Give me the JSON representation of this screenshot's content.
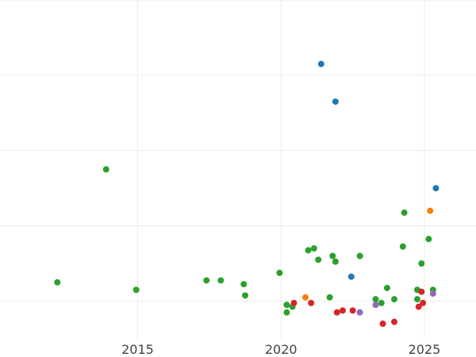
{
  "chart_data": {
    "type": "scatter",
    "title": "",
    "xlabel": "",
    "ylabel": "",
    "xlim": [
      2010.2,
      2026.8
    ],
    "ylim": [
      0,
      9
    ],
    "xticks": [
      2015,
      2020,
      2025
    ],
    "xtick_labels": [
      "2015",
      "2020",
      "2025"
    ],
    "yticks": [
      1,
      3,
      5,
      7,
      9
    ],
    "ytick_labels_visible": false,
    "grid": true,
    "legend": "none",
    "series": [
      {
        "color": "#2ca02c",
        "points": [
          {
            "x": 2012.2,
            "y": 1.5
          },
          {
            "x": 2013.9,
            "y": 4.5
          },
          {
            "x": 2014.95,
            "y": 1.3
          },
          {
            "x": 2017.4,
            "y": 1.55
          },
          {
            "x": 2017.9,
            "y": 1.55
          },
          {
            "x": 2018.7,
            "y": 1.45
          },
          {
            "x": 2018.75,
            "y": 1.15
          },
          {
            "x": 2019.95,
            "y": 1.75
          },
          {
            "x": 2020.2,
            "y": 0.9
          },
          {
            "x": 2020.2,
            "y": 0.7
          },
          {
            "x": 2020.4,
            "y": 0.85
          },
          {
            "x": 2020.95,
            "y": 2.35
          },
          {
            "x": 2021.15,
            "y": 2.4
          },
          {
            "x": 2021.3,
            "y": 2.1
          },
          {
            "x": 2021.7,
            "y": 1.1
          },
          {
            "x": 2021.8,
            "y": 2.2
          },
          {
            "x": 2021.9,
            "y": 2.05
          },
          {
            "x": 2022.75,
            "y": 2.2
          },
          {
            "x": 2023.3,
            "y": 1.05
          },
          {
            "x": 2023.5,
            "y": 0.95
          },
          {
            "x": 2023.7,
            "y": 1.35
          },
          {
            "x": 2023.95,
            "y": 1.05
          },
          {
            "x": 2024.25,
            "y": 2.45
          },
          {
            "x": 2024.3,
            "y": 3.35
          },
          {
            "x": 2024.75,
            "y": 1.05
          },
          {
            "x": 2024.75,
            "y": 1.3
          },
          {
            "x": 2024.9,
            "y": 2.0
          },
          {
            "x": 2025.15,
            "y": 2.65
          },
          {
            "x": 2025.3,
            "y": 1.3
          }
        ]
      },
      {
        "color": "#1f77b4",
        "points": [
          {
            "x": 2021.4,
            "y": 7.3
          },
          {
            "x": 2021.9,
            "y": 6.3
          },
          {
            "x": 2022.45,
            "y": 1.65
          },
          {
            "x": 2025.4,
            "y": 4.0
          }
        ]
      },
      {
        "color": "#ff7f0e",
        "points": [
          {
            "x": 2020.85,
            "y": 1.1
          },
          {
            "x": 2025.2,
            "y": 3.4
          }
        ]
      },
      {
        "color": "#d62728",
        "points": [
          {
            "x": 2020.45,
            "y": 0.95
          },
          {
            "x": 2021.05,
            "y": 0.95
          },
          {
            "x": 2021.95,
            "y": 0.7
          },
          {
            "x": 2022.15,
            "y": 0.75
          },
          {
            "x": 2022.5,
            "y": 0.75
          },
          {
            "x": 2023.55,
            "y": 0.4
          },
          {
            "x": 2023.95,
            "y": 0.45
          },
          {
            "x": 2024.8,
            "y": 0.85
          },
          {
            "x": 2024.95,
            "y": 0.95
          },
          {
            "x": 2024.9,
            "y": 1.25
          }
        ]
      },
      {
        "color": "#9467bd",
        "points": [
          {
            "x": 2022.75,
            "y": 0.7
          },
          {
            "x": 2023.3,
            "y": 0.9
          },
          {
            "x": 2025.3,
            "y": 1.2
          }
        ]
      }
    ]
  }
}
